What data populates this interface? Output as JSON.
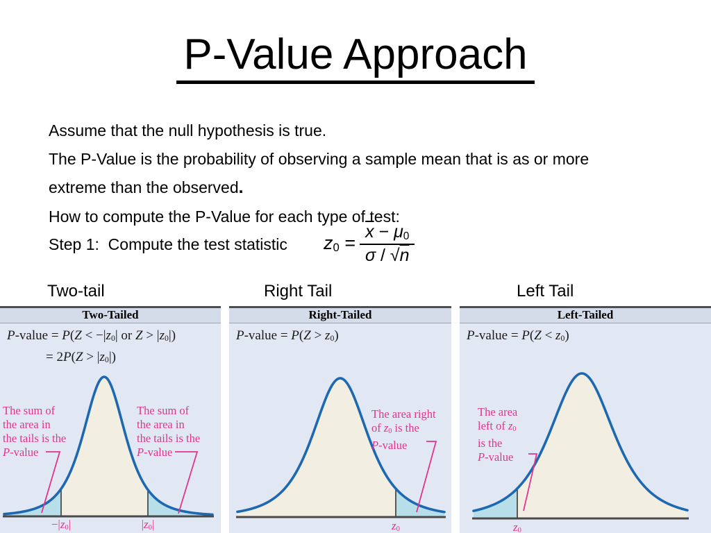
{
  "slide": {
    "title": "P-Value Approach",
    "body_lines": [
      [
        {
          "t": "Assume that the null hypothesis is true."
        }
      ],
      [
        {
          "t": "The P-Value is the probability of observing a sample mean that is as or more"
        }
      ],
      [
        {
          "t": "extreme than the observed"
        },
        {
          "t": ".",
          "b": 1
        }
      ],
      [
        {
          "t": "How to compute the P-Value for each type of test:"
        }
      ],
      [
        {
          "t": "Step 1:  Compute the test statistic"
        }
      ]
    ]
  },
  "equation": {
    "lhs": [
      {
        "t": "z",
        "i": 1
      },
      {
        "t": "0",
        "sub": 1
      },
      {
        "t": " = "
      }
    ],
    "numerator": [
      {
        "t": "x",
        "i": 1,
        "bar": 1
      },
      {
        "t": " − "
      },
      {
        "t": "μ",
        "i": 1
      },
      {
        "t": "0",
        "sub": 1
      }
    ],
    "denominator": [
      {
        "t": "σ",
        "i": 1
      },
      {
        "t": " / "
      },
      {
        "t": "√"
      },
      {
        "t": "n",
        "i": 1,
        "bar": 1
      }
    ]
  },
  "section_labels": [
    "Two-tail",
    "Right Tail",
    "Left Tail"
  ],
  "panels": [
    {
      "header": "Two-Tailed",
      "formula_lines": [
        [
          {
            "t": "P",
            "i": 1
          },
          {
            "t": "-value = "
          },
          {
            "t": "P",
            "i": 1
          },
          {
            "t": "("
          },
          {
            "t": "Z",
            "i": 1
          },
          {
            "t": " < −|"
          },
          {
            "t": "z",
            "i": 1
          },
          {
            "t": "0",
            "sub": 1
          },
          {
            "t": "| or "
          },
          {
            "t": "Z",
            "i": 1
          },
          {
            "t": " > |"
          },
          {
            "t": "z",
            "i": 1
          },
          {
            "t": "0",
            "sub": 1
          },
          {
            "t": "|)"
          }
        ],
        [
          {
            "t": "= 2"
          },
          {
            "t": "P",
            "i": 1
          },
          {
            "t": "("
          },
          {
            "t": "Z",
            "i": 1
          },
          {
            "t": " > |"
          },
          {
            "t": "z",
            "i": 1
          },
          {
            "t": "0",
            "sub": 1
          },
          {
            "t": "|)"
          }
        ]
      ],
      "annotations": [
        {
          "lines": [
            [
              {
                "t": "The sum of"
              }
            ],
            [
              {
                "t": "the area in"
              }
            ],
            [
              {
                "t": "the tails is the"
              }
            ],
            [
              {
                "t": "P",
                "i": 1
              },
              {
                "t": "-value"
              }
            ]
          ]
        },
        {
          "lines": [
            [
              {
                "t": "The sum of"
              }
            ],
            [
              {
                "t": "the area in"
              }
            ],
            [
              {
                "t": "the tails is the"
              }
            ],
            [
              {
                "t": "P",
                "i": 1
              },
              {
                "t": "-value"
              }
            ]
          ]
        }
      ],
      "axis_labels": [
        [
          {
            "t": "−|"
          },
          {
            "t": "z",
            "i": 1
          },
          {
            "t": "0",
            "sub": 1
          },
          {
            "t": "|"
          }
        ],
        [
          {
            "t": "|"
          },
          {
            "t": "z",
            "i": 1
          },
          {
            "t": "0",
            "sub": 1
          },
          {
            "t": "|"
          }
        ]
      ]
    },
    {
      "header": "Right-Tailed",
      "formula_lines": [
        [
          {
            "t": "P",
            "i": 1
          },
          {
            "t": "-value = "
          },
          {
            "t": "P",
            "i": 1
          },
          {
            "t": "("
          },
          {
            "t": "Z",
            "i": 1
          },
          {
            "t": " > "
          },
          {
            "t": "z",
            "i": 1
          },
          {
            "t": "0",
            "sub": 1
          },
          {
            "t": ")"
          }
        ]
      ],
      "annotations": [
        {
          "lines": [
            [
              {
                "t": "The area right"
              }
            ],
            [
              {
                "t": "of "
              },
              {
                "t": "z",
                "i": 1
              },
              {
                "t": "0",
                "sub": 1
              },
              {
                "t": " is the"
              }
            ],
            [
              {
                "t": "P",
                "i": 1
              },
              {
                "t": "-value "
              }
            ]
          ]
        }
      ],
      "axis_labels": [
        [
          {
            "t": "z",
            "i": 1
          },
          {
            "t": "0",
            "sub": 1
          }
        ]
      ]
    },
    {
      "header": "Left-Tailed",
      "formula_lines": [
        [
          {
            "t": "P",
            "i": 1
          },
          {
            "t": "-value = "
          },
          {
            "t": "P",
            "i": 1
          },
          {
            "t": "("
          },
          {
            "t": "Z",
            "i": 1
          },
          {
            "t": " < "
          },
          {
            "t": "z",
            "i": 1
          },
          {
            "t": "0",
            "sub": 1
          },
          {
            "t": ")"
          }
        ]
      ],
      "annotations": [
        {
          "lines": [
            [
              {
                "t": "The area"
              }
            ],
            [
              {
                "t": "left of "
              },
              {
                "t": "z",
                "i": 1
              },
              {
                "t": "0",
                "sub": 1
              }
            ],
            [
              {
                "t": "is the"
              }
            ],
            [
              {
                "t": "P",
                "i": 1
              },
              {
                "t": "-value"
              }
            ]
          ]
        }
      ],
      "axis_labels": [
        [
          {
            "t": "z",
            "i": 1
          },
          {
            "t": "0",
            "sub": 1
          }
        ]
      ]
    }
  ],
  "colors": {
    "curve_blue": "#1d68b0",
    "tail_fill": "#b8dfe9",
    "curve_fill": "#f2efe2",
    "panel_bg": "#e1e7f3",
    "header_bg": "#d4dcea",
    "annotation_pink": "#e0358b",
    "axis_gray": "#4a4a4a",
    "text_black": "#000000"
  }
}
